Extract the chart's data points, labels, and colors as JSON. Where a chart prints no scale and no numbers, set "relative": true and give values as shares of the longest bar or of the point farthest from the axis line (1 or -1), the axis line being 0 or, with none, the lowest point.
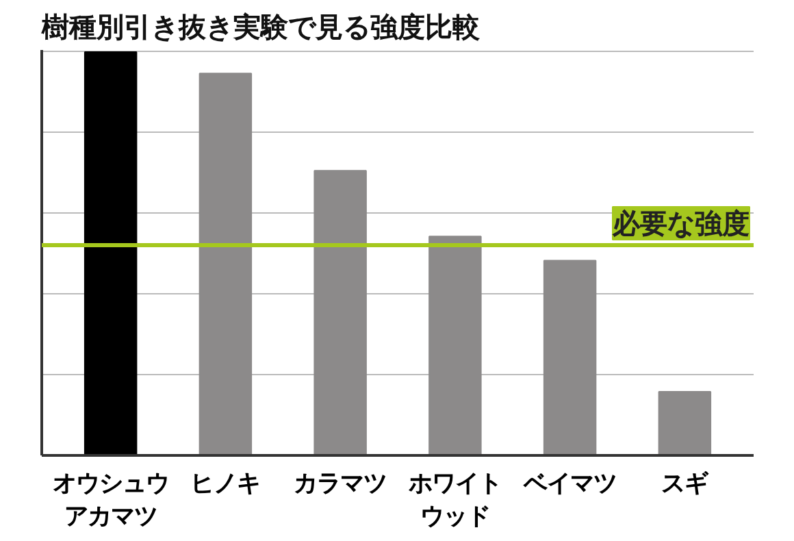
{
  "chart_data": {
    "type": "bar",
    "title": "樹種別引き抜き実験で見る強度比較",
    "relative": true,
    "grid": "y",
    "categories": [
      "オウシュウアカマツ",
      "ヒノキ",
      "カラマツ",
      "ホワイトウッド",
      "ベイマツ",
      "スギ"
    ],
    "values": [
      1,
      0.947,
      0.706,
      0.543,
      0.483,
      0.158
    ],
    "colors": [
      "#000000",
      "#8c8a8a",
      "#8c8a8a",
      "#8c8a8a",
      "#8c8a8a",
      "#8c8a8a"
    ],
    "ref_lines": [
      {
        "axis": "y",
        "value": 0.521,
        "label": "必要な強度",
        "color": "#a5c81e"
      }
    ]
  }
}
